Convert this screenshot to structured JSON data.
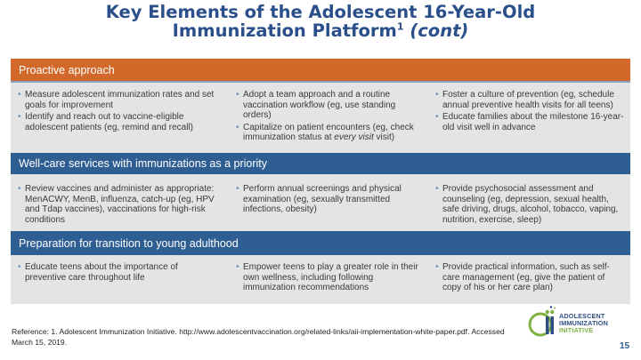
{
  "slide": {
    "title_line1": "Key Elements of the Adolescent 16-Year-Old",
    "title_line2": "Immunization Platform",
    "title_superscript": "1",
    "title_cont": "(cont)"
  },
  "sections": [
    {
      "header": "Proactive approach",
      "columns": [
        [
          "Measure adolescent immunization rates and set goals for improvement",
          "Identify and reach out to vaccine-eligible adolescent patients (eg, remind and recall)"
        ],
        [
          "Adopt a team approach and a routine vaccination workflow (eg, use standing orders)",
          "Capitalize on patient encounters (eg, check immunization status at every visit)"
        ],
        [
          "Foster a culture of prevention (eg, schedule annual preventive health visits for all teens)",
          "Educate families about the milestone 16-year-old visit well in advance"
        ]
      ]
    },
    {
      "header": "Well-care services with immunizations as a priority",
      "columns": [
        [
          "Review vaccines and administer as appropriate: MenACWY, MenB, influenza, catch-up (eg, HPV and Tdap vaccines), vaccinations for high-risk conditions"
        ],
        [
          "Perform annual screenings and physical examination (eg, sexually transmitted infections, obesity)"
        ],
        [
          "Provide psychosocial assessment and counseling (eg, depression, sexual health, safe driving, drugs, alcohol, tobacco, vaping, nutrition, exercise, sleep)"
        ]
      ]
    },
    {
      "header": "Preparation for transition to young adulthood",
      "columns": [
        [
          "Educate teens about the importance of preventive care throughout life"
        ],
        [
          "Empower teens to play a greater role in their own wellness, including following immunization recommendations"
        ],
        [
          "Provide practical information, such as self-care management (eg, give the patient of copy of his or her care plan)"
        ]
      ]
    }
  ],
  "italic_phrase": "every visit",
  "reference": "Reference: 1. Adolescent Immunization Initiative. http://www.adolescentvaccination.org/related-links/aii-implementation-white-paper.pdf. Accessed March 15, 2019.",
  "logo": {
    "line1": "ADOLESCENT",
    "line2": "IMMUNIZATION",
    "line3": "INITIATIVE"
  },
  "page_number": "15",
  "colors": {
    "title": "#2a4f8a",
    "orange_band": "#d2682a",
    "blue_band": "#2e5e92",
    "panel": "#e4e4e4",
    "bullet": "#6b8dba",
    "logo_blue": "#2e4f86",
    "logo_green": "#7fb241"
  }
}
